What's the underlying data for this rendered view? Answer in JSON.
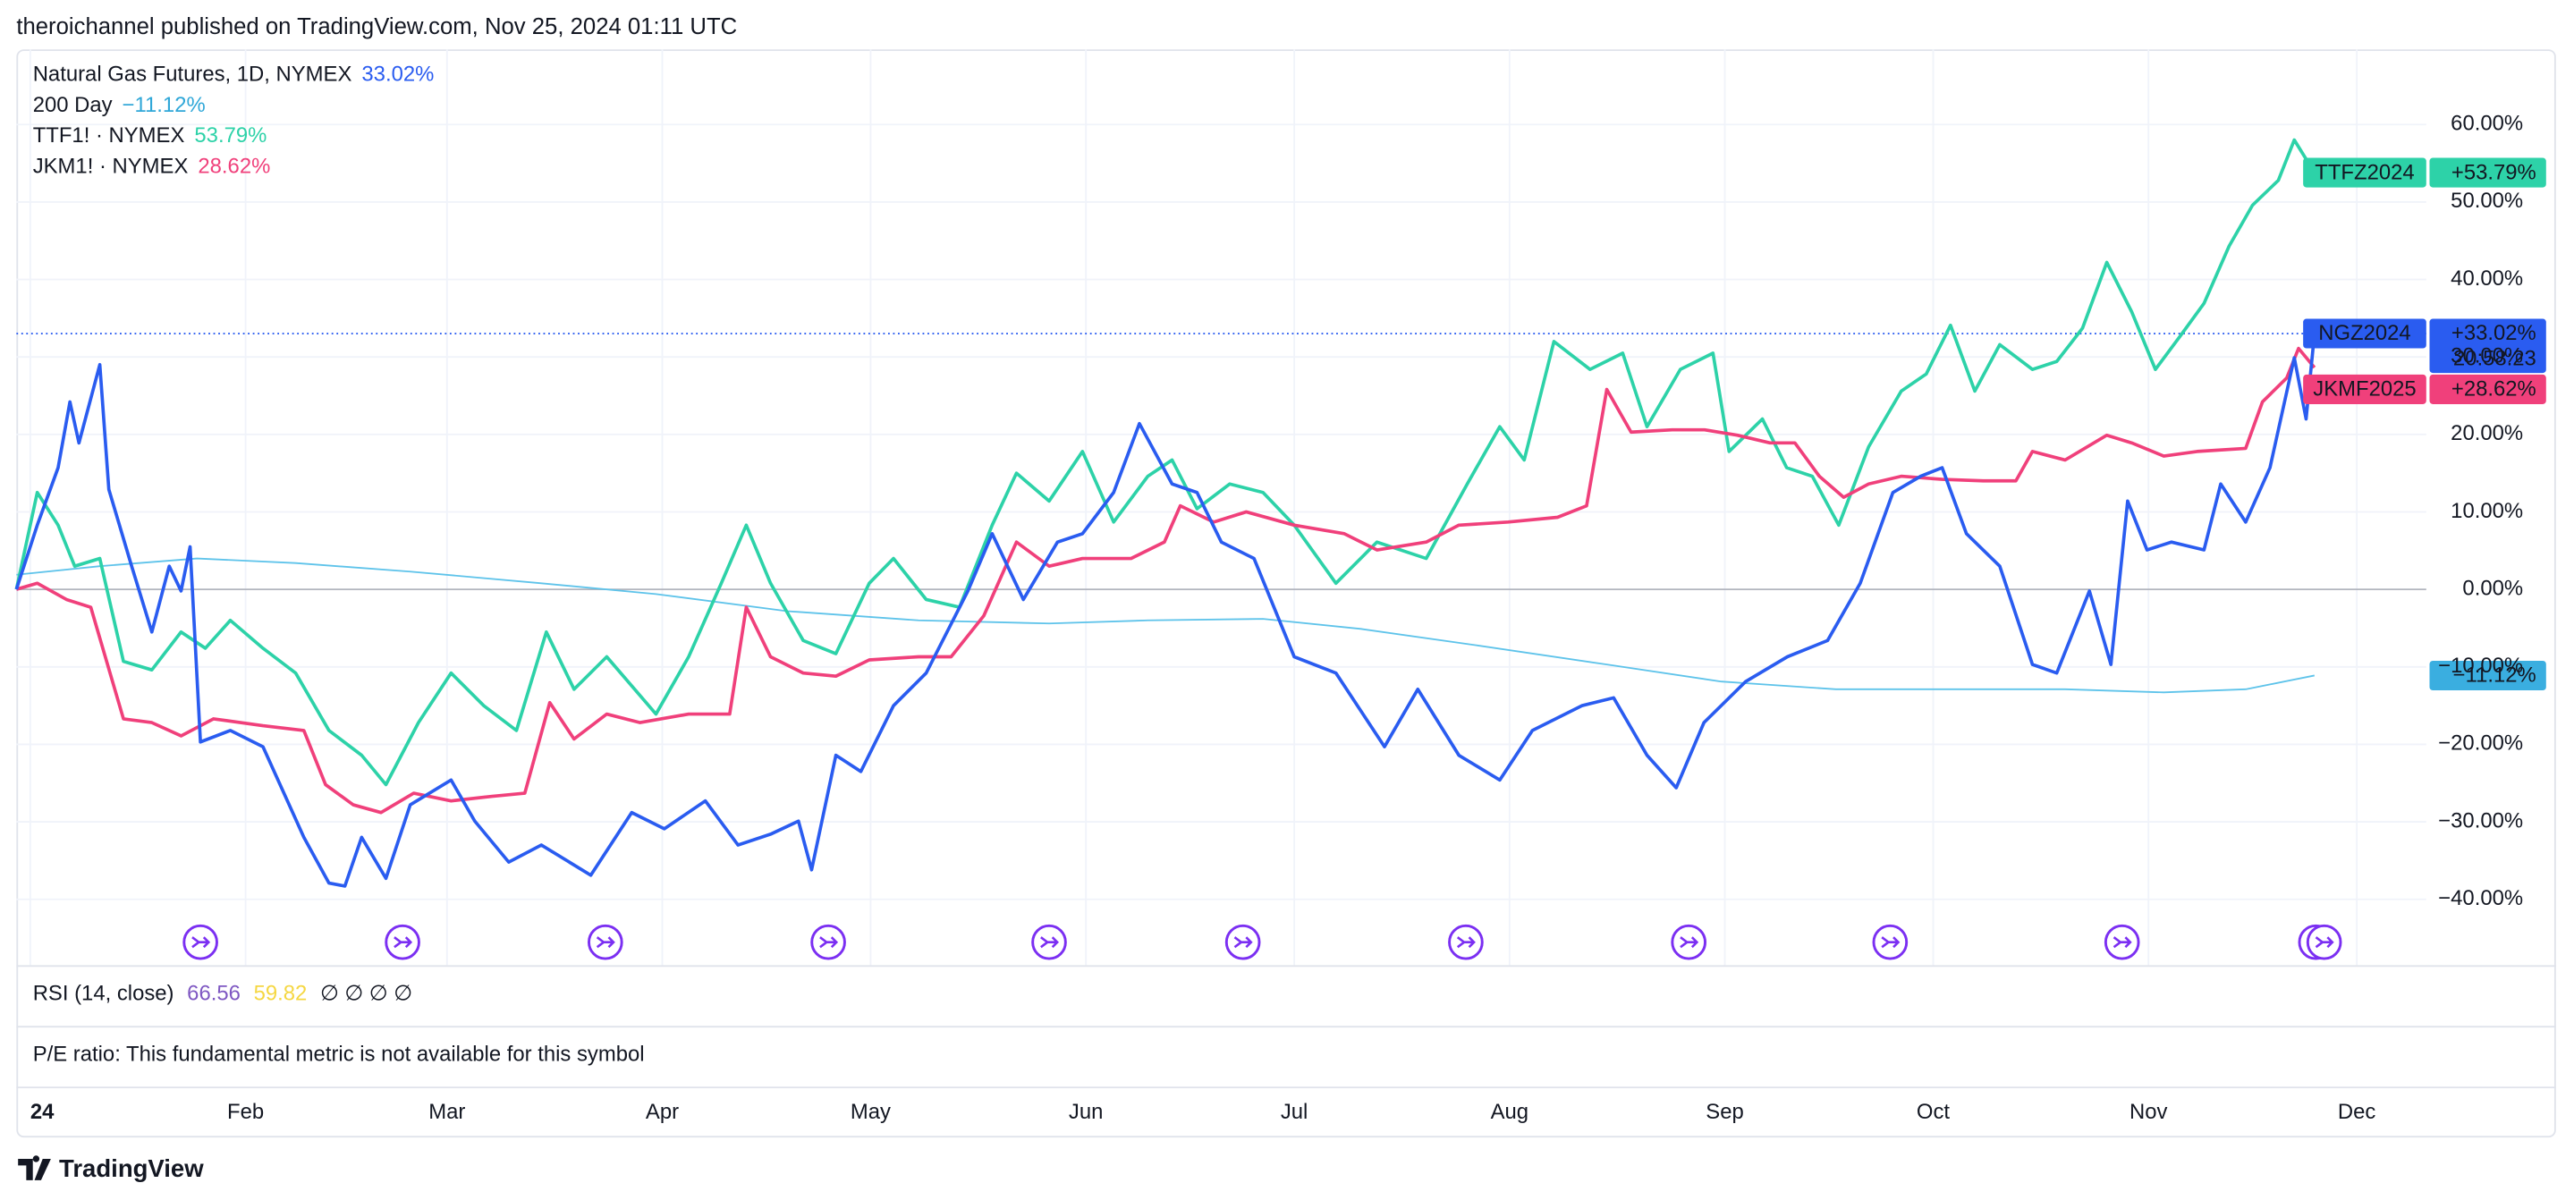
{
  "header": "theroichannel published on TradingView.com, Nov 25, 2024 01:11 UTC",
  "chart_data": {
    "type": "line",
    "legend": [
      {
        "text": "Natural Gas Futures, 1D, NYMEX",
        "value": "33.02%"
      },
      {
        "text": "200 Day",
        "value": "−11.12%"
      },
      {
        "text": "TTF1! · NYMEX",
        "value": "53.79%"
      },
      {
        "text": "JKM1! · NYMEX",
        "value": "28.62%"
      }
    ],
    "xlim": [
      -2,
      345
    ],
    "ylim": [
      -48.5,
      69.7
    ],
    "xticks": [
      {
        "value": 0,
        "label": "24"
      },
      {
        "value": 31,
        "label": "Feb"
      },
      {
        "value": 60,
        "label": "Mar"
      },
      {
        "value": 91,
        "label": "Apr"
      },
      {
        "value": 121,
        "label": "May"
      },
      {
        "value": 152,
        "label": "Jun"
      },
      {
        "value": 182,
        "label": "Jul"
      },
      {
        "value": 213,
        "label": "Aug"
      },
      {
        "value": 244,
        "label": "Sep"
      },
      {
        "value": 274,
        "label": "Oct"
      },
      {
        "value": 305,
        "label": "Nov"
      },
      {
        "value": 335,
        "label": "Dec"
      }
    ],
    "yticks": [
      {
        "value": -40,
        "label": "−40.00%"
      },
      {
        "value": -30,
        "label": "−30.00%"
      },
      {
        "value": -20,
        "label": "−20.00%"
      },
      {
        "value": -10,
        "label": "−10.00%"
      },
      {
        "value": 0,
        "label": "0.00%"
      },
      {
        "value": 10,
        "label": "10.00%"
      },
      {
        "value": 20,
        "label": "20.00%"
      },
      {
        "value": 30,
        "label": "30.00%"
      },
      {
        "value": 40,
        "label": "40.00%"
      },
      {
        "value": 50,
        "label": "50.00%"
      },
      {
        "value": 60,
        "label": "60.00%"
      }
    ],
    "grid": true,
    "series": [
      {
        "name": "Natural Gas Futures",
        "color": "#2a5cf0",
        "width": 2,
        "x": [
          -2,
          1,
          4,
          5.7,
          7,
          10,
          11.3,
          14.6,
          17.5,
          20,
          21.7,
          23,
          24.5,
          28.8,
          33.5,
          39.4,
          43,
          45.3,
          47.7,
          51.2,
          54.7,
          60.6,
          64,
          68.9,
          73.6,
          80.7,
          86.6,
          91.3,
          97.2,
          101.9,
          106.6,
          110.6,
          112.5,
          116,
          119.6,
          124.3,
          129,
          135,
          138.5,
          143,
          147.9,
          151.5,
          156,
          159.7,
          164.4,
          168,
          171.5,
          176.2,
          182,
          188,
          192.7,
          195,
          199.8,
          205.7,
          211.6,
          216.3,
          223.4,
          228,
          232.8,
          237,
          241,
          247,
          253,
          258.8,
          263.5,
          268.2,
          272.2,
          275.3,
          278.8,
          283.6,
          288.3,
          291.8,
          296.5,
          299.6,
          302,
          304.8,
          308.3,
          313,
          315.4,
          319,
          322.5,
          326,
          327.7,
          328.9
        ],
        "values": [
          0,
          8.3,
          15.7,
          24.2,
          18.9,
          29,
          12.9,
          3,
          -5.5,
          3,
          -0.2,
          5.5,
          -19.7,
          -18.2,
          -20.3,
          -32,
          -37.9,
          -38.3,
          -32,
          -37.3,
          -27.8,
          -24.6,
          -29.9,
          -35.2,
          -33,
          -36.9,
          -28.8,
          -30.9,
          -27.3,
          -33,
          -31.6,
          -29.9,
          -36.2,
          -21.4,
          -23.5,
          -15,
          -10.8,
          -0.2,
          7.2,
          -1.3,
          6.1,
          7.2,
          12.5,
          21.4,
          13.6,
          12.5,
          6.1,
          4,
          -8.7,
          -10.8,
          -17.2,
          -20.3,
          -12.9,
          -21.4,
          -24.6,
          -18.2,
          -15,
          -14,
          -21.4,
          -25.6,
          -17.2,
          -11.9,
          -8.7,
          -6.6,
          0.8,
          12.5,
          14.6,
          15.7,
          7.2,
          3,
          -9.7,
          -10.8,
          -0.2,
          -9.7,
          11.4,
          5.1,
          6.1,
          5.1,
          13.6,
          8.7,
          15.7,
          29.9,
          22,
          33.02
        ]
      },
      {
        "name": "200 Day",
        "color": "#5ec3ea",
        "width": 1,
        "x": [
          -2,
          10,
          24,
          38.2,
          54.7,
          73.6,
          90.1,
          109,
          127.9,
          146.7,
          160.9,
          177.5,
          191.6,
          208.1,
          227,
          243.5,
          260,
          278.8,
          293,
          307.2,
          319,
          328.9
        ],
        "values": [
          1.9,
          3,
          4,
          3.4,
          2.3,
          0.8,
          -0.6,
          -2.8,
          -4,
          -4.4,
          -4,
          -3.8,
          -5.1,
          -7.2,
          -9.7,
          -11.9,
          -12.9,
          -12.9,
          -12.9,
          -13.3,
          -12.9,
          -11.12
        ]
      },
      {
        "name": "TTF1!",
        "color": "#2dd2a8",
        "width": 2,
        "x": [
          -2,
          1,
          4,
          6.4,
          10,
          13.4,
          17.5,
          21.7,
          25.2,
          28.8,
          33.5,
          38.2,
          43,
          47.7,
          51.2,
          55.9,
          60.6,
          65.3,
          70,
          74.3,
          78.3,
          83,
          90.1,
          94.8,
          99.5,
          103.1,
          106.6,
          111.3,
          116,
          120.8,
          124.3,
          129,
          133.8,
          138.5,
          142,
          146.7,
          151.5,
          156,
          160.9,
          164.4,
          168,
          172.7,
          177.5,
          182,
          188,
          193.9,
          201,
          206.9,
          211.6,
          215.1,
          219.4,
          224.6,
          229.3,
          232.8,
          237.6,
          242.3,
          244.6,
          249.4,
          252.9,
          256.6,
          260.4,
          264.7,
          269.4,
          273,
          276.5,
          280,
          283.6,
          288.3,
          291.8,
          295.5,
          299,
          302.6,
          306,
          309.5,
          313,
          316.6,
          320,
          323.7,
          326,
          328.9
        ],
        "values": [
          0,
          12.5,
          8.3,
          3,
          4,
          -9.3,
          -10.4,
          -5.5,
          -7.6,
          -4,
          -7.6,
          -10.8,
          -18.2,
          -21.4,
          -25.2,
          -17.2,
          -10.8,
          -15,
          -18.2,
          -5.5,
          -12.9,
          -8.7,
          -16.1,
          -8.7,
          0.8,
          8.3,
          0.8,
          -6.6,
          -8.3,
          0.8,
          4,
          -1.3,
          -2.3,
          8.3,
          15,
          11.4,
          17.8,
          8.7,
          14.6,
          16.7,
          10.4,
          13.6,
          12.5,
          8.3,
          0.8,
          6.1,
          4,
          13.6,
          21,
          16.7,
          32,
          28.4,
          30.5,
          21,
          28.4,
          30.5,
          17.8,
          22,
          15.7,
          14.6,
          8.3,
          18.4,
          25.6,
          27.8,
          34.1,
          25.6,
          31.6,
          28.4,
          29.4,
          33.7,
          42.2,
          35.8,
          28.4,
          32.6,
          36.9,
          44.3,
          49.6,
          52.8,
          58,
          53.79
        ]
      },
      {
        "name": "JKM1!",
        "color": "#f0407b",
        "width": 2,
        "x": [
          -2,
          1,
          5.2,
          8.7,
          13.4,
          17.5,
          21.7,
          26.4,
          33.5,
          39.4,
          42.5,
          46.5,
          50.5,
          55.2,
          60.6,
          66.5,
          71.2,
          74.8,
          78.3,
          83,
          87.8,
          94.8,
          100.7,
          103.1,
          106.6,
          111.3,
          116,
          120.8,
          127.9,
          132.6,
          137.3,
          142,
          146.7,
          151.5,
          158.5,
          163.3,
          165.6,
          170.4,
          175.1,
          182,
          189.2,
          193.9,
          201,
          205.7,
          212.8,
          219.9,
          224.1,
          227,
          230.5,
          236.4,
          241.1,
          245.8,
          250.5,
          254.1,
          257.6,
          261.1,
          264.7,
          269.4,
          275.3,
          281.2,
          285.9,
          288.3,
          293,
          299,
          302.6,
          307.2,
          312,
          319,
          321.4,
          324.9,
          326.6,
          328.9
        ],
        "values": [
          0,
          0.8,
          -1.3,
          -2.3,
          -16.7,
          -17.2,
          -18.9,
          -16.7,
          -17.6,
          -18.2,
          -25.2,
          -27.8,
          -28.8,
          -26.3,
          -27.3,
          -26.7,
          -26.3,
          -14.6,
          -19.3,
          -16.1,
          -17.2,
          -16.1,
          -16.1,
          -2.3,
          -8.7,
          -10.8,
          -11.2,
          -9.1,
          -8.7,
          -8.7,
          -3.4,
          6.1,
          3,
          4,
          4,
          6.1,
          10.8,
          8.7,
          10,
          8.3,
          7.2,
          5.1,
          6.1,
          8.3,
          8.7,
          9.3,
          10.8,
          25.8,
          20.3,
          20.6,
          20.6,
          19.9,
          18.9,
          18.9,
          14.6,
          11.9,
          13.6,
          14.6,
          14.2,
          14,
          14,
          17.8,
          16.7,
          19.9,
          18.9,
          17.2,
          17.8,
          18.2,
          24.2,
          27.3,
          31.1,
          28.62
        ]
      }
    ],
    "price_labels": [
      {
        "series": 2,
        "symbol": "TTFZ2024",
        "value": "+53.79%"
      },
      {
        "series": 0,
        "symbol": "NGZ2024",
        "value": "+33.02%",
        "timer": "20:58:23"
      },
      {
        "series": 3,
        "symbol": "JKMF2025",
        "value": "+28.62%"
      },
      {
        "series": 1,
        "value": "−11.12%"
      }
    ],
    "events": [
      24.5,
      53.6,
      82.8,
      114.9,
      146.7,
      174.6,
      206.7,
      238.8,
      267.8,
      301.2,
      329.1,
      330.3
    ]
  },
  "rsi": {
    "label": "RSI (14, close)",
    "value": "66.56",
    "signal": "59.82",
    "empty": "∅ ∅ ∅ ∅"
  },
  "pe_note": "P/E ratio: This fundamental metric is not available for this symbol",
  "footer": "TradingView"
}
